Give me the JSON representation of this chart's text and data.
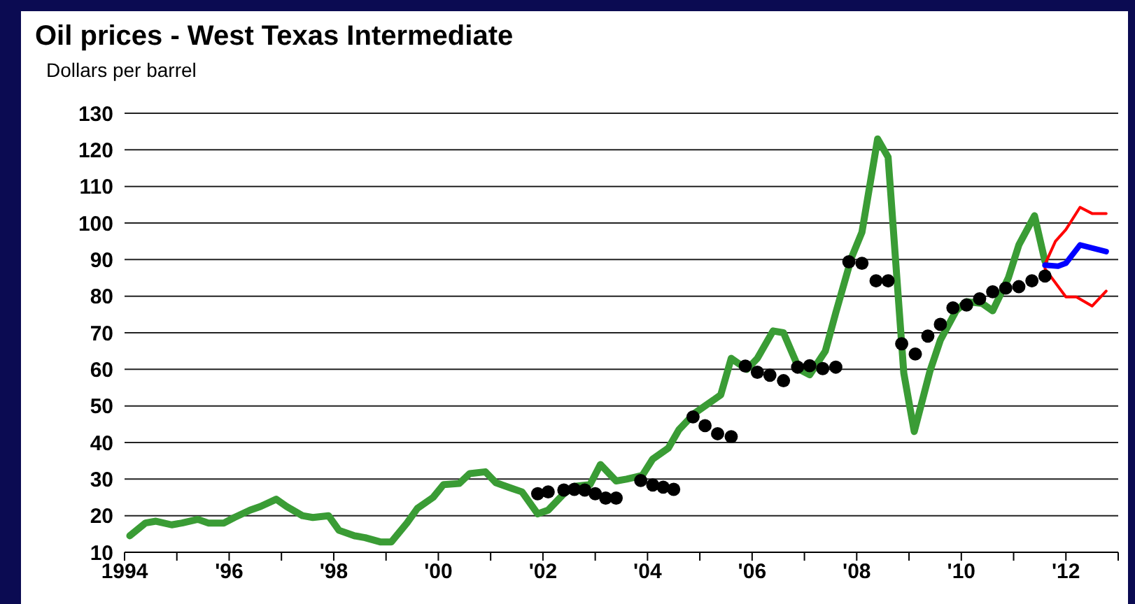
{
  "chart_data": {
    "type": "line",
    "title": "Oil prices - West Texas Intermediate",
    "ylabel": "Dollars per barrel",
    "xlim": [
      1994,
      2013
    ],
    "xticks": [
      {
        "value": 1994,
        "label": "1994"
      },
      {
        "value": 1995,
        "label": null
      },
      {
        "value": 1996,
        "label": "'96"
      },
      {
        "value": 1997,
        "label": null
      },
      {
        "value": 1998,
        "label": "'98"
      },
      {
        "value": 1999,
        "label": null
      },
      {
        "value": 2000,
        "label": "'00"
      },
      {
        "value": 2001,
        "label": null
      },
      {
        "value": 2002,
        "label": "'02"
      },
      {
        "value": 2003,
        "label": null
      },
      {
        "value": 2004,
        "label": "'04"
      },
      {
        "value": 2005,
        "label": null
      },
      {
        "value": 2006,
        "label": "'06"
      },
      {
        "value": 2007,
        "label": null
      },
      {
        "value": 2008,
        "label": "'08"
      },
      {
        "value": 2009,
        "label": null
      },
      {
        "value": 2010,
        "label": "'10"
      },
      {
        "value": 2011,
        "label": null
      },
      {
        "value": 2012,
        "label": "'12"
      },
      {
        "value": 2013,
        "label": null
      }
    ],
    "ylim": [
      10,
      130
    ],
    "yticks": [
      10,
      20,
      30,
      40,
      50,
      60,
      70,
      80,
      90,
      100,
      110,
      120,
      130
    ],
    "grid": "y",
    "series": [
      {
        "color": "#3a9c35",
        "x": [
          1994.1,
          1994.4,
          1994.6,
          1994.9,
          1995.1,
          1995.4,
          1995.6,
          1995.9,
          1996.1,
          1996.4,
          1996.6,
          1996.9,
          1997.1,
          1997.4,
          1997.6,
          1997.9,
          1998.1,
          1998.4,
          1998.6,
          1998.9,
          1999.1,
          1999.4,
          1999.6,
          1999.9,
          2000.1,
          2000.4,
          2000.6,
          2000.9,
          2001.1,
          2001.4,
          2001.6,
          2001.9,
          2002.1,
          2002.4,
          2002.6,
          2002.9,
          2003.1,
          2003.4,
          2003.6,
          2003.9,
          2004.1,
          2004.4,
          2004.6,
          2004.9,
          2005.1,
          2005.4,
          2005.6,
          2005.9,
          2006.1,
          2006.4,
          2006.6,
          2006.9,
          2007.1,
          2007.4,
          2007.6,
          2007.9,
          2008.1,
          2008.4,
          2008.6,
          2008.9,
          2009.1,
          2009.4,
          2009.6,
          2009.9,
          2010.1,
          2010.4,
          2010.6,
          2010.9,
          2011.1,
          2011.4,
          2011.6
        ],
        "values": [
          14.5,
          18,
          18.5,
          17.5,
          18,
          19,
          18,
          18,
          19.5,
          21.5,
          22.5,
          24.5,
          22.5,
          20,
          19.5,
          20,
          16,
          14.5,
          14,
          12.8,
          12.8,
          18,
          22,
          25,
          28.5,
          28.8,
          31.5,
          32,
          29,
          27.5,
          26.5,
          20.5,
          21.5,
          26,
          28,
          28.5,
          34,
          29.5,
          30,
          31,
          35.5,
          38.5,
          43.5,
          48,
          50,
          53,
          63,
          60,
          63,
          70.5,
          70,
          60,
          58.5,
          65,
          75.5,
          90.5,
          97.5,
          123,
          118,
          59,
          43,
          59.5,
          68,
          76,
          78.5,
          78,
          76,
          85,
          94,
          102,
          89.5
        ]
      },
      {
        "type": "scatter",
        "marker": "circle",
        "color": "#000000",
        "x": [
          2001.9,
          2002.1,
          2002.4,
          2002.6,
          2002.8,
          2003.0,
          2003.2,
          2003.4,
          2003.87,
          2004.1,
          2004.3,
          2004.5,
          2004.87,
          2005.1,
          2005.34,
          2005.6,
          2005.87,
          2006.1,
          2006.34,
          2006.6,
          2006.87,
          2007.1,
          2007.35,
          2007.6,
          2007.85,
          2008.1,
          2008.37,
          2008.6,
          2008.86,
          2009.12,
          2009.36,
          2009.6,
          2009.84,
          2010.1,
          2010.35,
          2010.6,
          2010.85,
          2011.1,
          2011.35,
          2011.6
        ],
        "values": [
          26,
          26.5,
          27,
          27.2,
          27,
          26,
          24.8,
          24.8,
          29.6,
          28.4,
          27.8,
          27.2,
          47,
          44.6,
          42.4,
          41.6,
          60.9,
          59.2,
          58.4,
          56.9,
          60.6,
          61,
          60.2,
          60.6,
          89.4,
          89,
          84.2,
          84.2,
          67,
          64.2,
          69.1,
          72.3,
          76.8,
          77.6,
          79.3,
          81.2,
          82.2,
          82.6,
          84.2,
          85.5
        ]
      },
      {
        "color": "#ff0000",
        "x": [
          2011.6,
          2011.8,
          2012.0,
          2012.27,
          2012.5,
          2012.77
        ],
        "values": [
          88.7,
          95,
          98.2,
          104.3,
          102.6,
          102.6
        ]
      },
      {
        "color": "#ff0000",
        "x": [
          2011.6,
          2012.0,
          2012.2,
          2012.5,
          2012.77
        ],
        "values": [
          87.5,
          79.8,
          79.8,
          77.3,
          81.4
        ]
      },
      {
        "color": "#0000ff",
        "x": [
          2011.6,
          2011.85,
          2012.0,
          2012.27,
          2012.77
        ],
        "values": [
          88.5,
          88.2,
          89,
          94,
          92.2
        ]
      }
    ]
  }
}
